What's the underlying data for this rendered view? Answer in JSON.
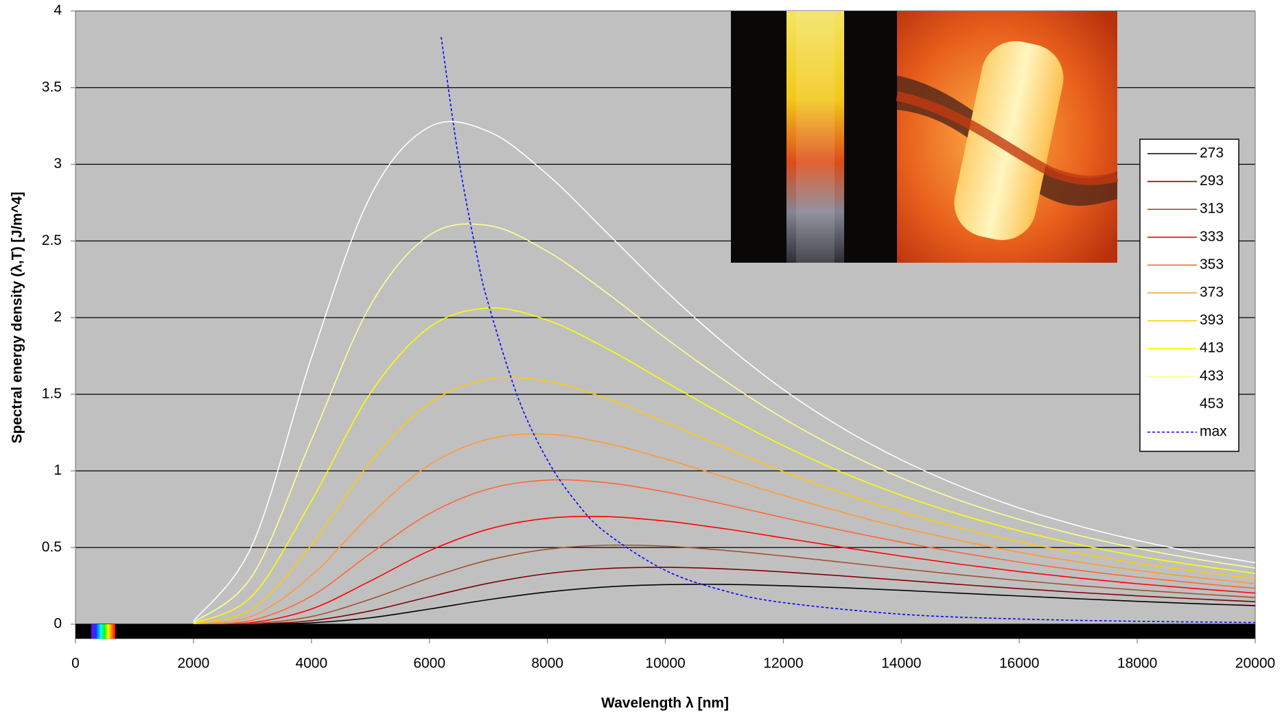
{
  "chart_data": {
    "type": "line",
    "xlabel": "Wavelength λ [nm]",
    "ylabel": "Spectral energy density (λ,T) [J/m^4]",
    "x": [
      2000,
      3000,
      4000,
      5000,
      6000,
      7000,
      8000,
      9000,
      10000,
      11000,
      12000,
      13000,
      14000,
      15000,
      16000,
      17000,
      18000,
      19000,
      20000
    ],
    "series": [
      {
        "name": "273",
        "color": "#000000",
        "values": [
          0,
          0,
          0.009,
          0.042,
          0.099,
          0.16,
          0.21,
          0.243,
          0.258,
          0.26,
          0.251,
          0.238,
          0.221,
          0.202,
          0.184,
          0.166,
          0.149,
          0.134,
          0.121
        ]
      },
      {
        "name": "293",
        "color": "#800000",
        "values": [
          0,
          0.002,
          0.023,
          0.087,
          0.179,
          0.267,
          0.33,
          0.363,
          0.371,
          0.361,
          0.341,
          0.315,
          0.287,
          0.259,
          0.232,
          0.207,
          0.185,
          0.165,
          0.147
        ]
      },
      {
        "name": "313",
        "color": "#a0522d",
        "values": [
          0,
          0.005,
          0.05,
          0.163,
          0.302,
          0.418,
          0.489,
          0.515,
          0.509,
          0.482,
          0.445,
          0.404,
          0.362,
          0.322,
          0.285,
          0.252,
          0.223,
          0.198,
          0.174
        ]
      },
      {
        "name": "333",
        "color": "#ff0000",
        "values": [
          0,
          0.011,
          0.099,
          0.282,
          0.479,
          0.62,
          0.691,
          0.702,
          0.673,
          0.623,
          0.563,
          0.502,
          0.444,
          0.391,
          0.343,
          0.301,
          0.264,
          0.232,
          0.203
        ]
      },
      {
        "name": "353",
        "color": "#ff6633",
        "values": [
          0,
          0.026,
          0.183,
          0.461,
          0.721,
          0.882,
          0.94,
          0.923,
          0.863,
          0.782,
          0.695,
          0.612,
          0.535,
          0.466,
          0.405,
          0.352,
          0.307,
          0.268,
          0.234
        ]
      },
      {
        "name": "373",
        "color": "#ff9933",
        "values": [
          0.001,
          0.054,
          0.317,
          0.714,
          1.04,
          1.207,
          1.239,
          1.18,
          1.078,
          0.96,
          0.84,
          0.73,
          0.631,
          0.545,
          0.469,
          0.406,
          0.351,
          0.305,
          0.265
        ]
      },
      {
        "name": "393",
        "color": "#ffcc00",
        "values": [
          0.002,
          0.103,
          0.517,
          1.057,
          1.441,
          1.599,
          1.586,
          1.473,
          1.318,
          1.154,
          0.996,
          0.856,
          0.734,
          0.628,
          0.538,
          0.462,
          0.398,
          0.344,
          0.298
        ]
      },
      {
        "name": "413",
        "color": "#ffff00",
        "values": [
          0.004,
          0.186,
          0.804,
          1.507,
          1.937,
          2.062,
          1.983,
          1.8,
          1.581,
          1.364,
          1.165,
          0.99,
          0.841,
          0.715,
          0.609,
          0.52,
          0.445,
          0.384,
          0.331
        ]
      },
      {
        "name": "433",
        "color": "#ffff99",
        "values": [
          0.01,
          0.318,
          1.203,
          2.08,
          2.537,
          2.601,
          2.432,
          2.163,
          1.867,
          1.591,
          1.343,
          1.132,
          0.954,
          0.806,
          0.683,
          0.58,
          0.495,
          0.425,
          0.366
        ]
      },
      {
        "name": "453",
        "color": "#ffffff",
        "values": [
          0.02,
          0.519,
          1.738,
          2.792,
          3.244,
          3.214,
          2.933,
          2.557,
          2.176,
          1.832,
          1.531,
          1.28,
          1.072,
          0.9,
          0.758,
          0.642,
          0.547,
          0.467,
          0.401
        ]
      },
      {
        "name": "max",
        "color": "#0000ff",
        "dashed": true,
        "x": [
          6200,
          6500,
          6800,
          7000,
          7500,
          8000,
          8500,
          9000,
          10000,
          11000,
          12000,
          14000,
          16000,
          18000,
          20000
        ],
        "values": [
          3.83,
          3.026,
          2.415,
          2.089,
          1.48,
          1.071,
          0.791,
          0.595,
          0.351,
          0.218,
          0.141,
          0.065,
          0.034,
          0.019,
          0.011
        ]
      }
    ],
    "xlim": [
      0,
      20000
    ],
    "xticks": [
      0,
      2000,
      4000,
      6000,
      8000,
      10000,
      12000,
      14000,
      16000,
      18000,
      20000
    ],
    "ylim": [
      0,
      4
    ],
    "yticks": [
      0,
      0.5,
      1,
      1.5,
      2,
      2.5,
      3,
      3.5,
      4
    ],
    "grid": true,
    "legend": "right"
  }
}
